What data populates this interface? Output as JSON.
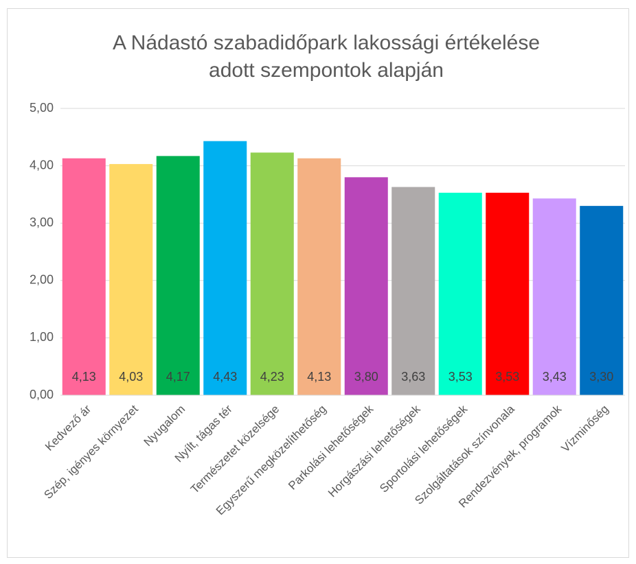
{
  "chart_data": {
    "type": "bar",
    "title": [
      "A Nádastó szabadidőpark lakossági értékelése",
      "adott szempontok alapján"
    ],
    "categories": [
      "Kedvező ár",
      "Szép, igényes környezet",
      "Nyugalom",
      "Nyílt, tágas tér",
      "Természetet közelsége",
      "Egyszerű megközelíthetőség",
      "Parkolási lehetőségek",
      "Horgászási lehetőségek",
      "Sportolási lehetőségek",
      "Szolgáltatások színvonala",
      "Rendezvények, programok",
      "Vízminőség"
    ],
    "values": [
      4.13,
      4.03,
      4.17,
      4.43,
      4.23,
      4.13,
      3.8,
      3.63,
      3.53,
      3.53,
      3.43,
      3.3
    ],
    "value_labels": [
      "4,13",
      "4,03",
      "4,17",
      "4,43",
      "4,23",
      "4,13",
      "3,80",
      "3,63",
      "3,53",
      "3,53",
      "3,43",
      "3,30"
    ],
    "colors": [
      "#ff6699",
      "#ffd966",
      "#00b050",
      "#00b0f0",
      "#92d050",
      "#f4b183",
      "#b946b9",
      "#aeaaaa",
      "#00ffcc",
      "#ff0000",
      "#cc99ff",
      "#0070c0"
    ],
    "ylim": [
      0,
      5
    ],
    "yticks": [
      {
        "value": 0,
        "label": "0,00"
      },
      {
        "value": 1,
        "label": "1,00"
      },
      {
        "value": 2,
        "label": "2,00"
      },
      {
        "value": 3,
        "label": "3,00"
      },
      {
        "value": 4,
        "label": "4,00"
      },
      {
        "value": 5,
        "label": "5,00"
      }
    ],
    "grid": true
  }
}
